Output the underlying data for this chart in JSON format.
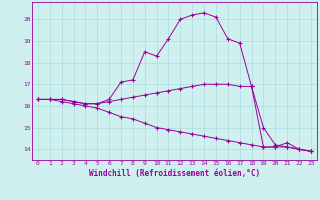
{
  "xlabel": "Windchill (Refroidissement éolien,°C)",
  "background_color": "#d0f0f0",
  "grid_color": "#aadddd",
  "line_color": "#990099",
  "xlim": [
    -0.5,
    23.5
  ],
  "ylim": [
    13.5,
    20.8
  ],
  "xticks": [
    0,
    1,
    2,
    3,
    4,
    5,
    6,
    7,
    8,
    9,
    10,
    11,
    12,
    13,
    14,
    15,
    16,
    17,
    18,
    19,
    20,
    21,
    22,
    23
  ],
  "yticks": [
    14,
    15,
    16,
    17,
    18,
    19,
    20
  ],
  "series1_x": [
    0,
    1,
    2,
    3,
    4,
    5,
    6,
    7,
    8,
    9,
    10,
    11,
    12,
    13,
    14,
    15,
    16,
    17,
    18,
    19,
    20,
    21,
    22,
    23
  ],
  "series1_y": [
    16.3,
    16.3,
    16.3,
    16.2,
    16.1,
    16.1,
    16.3,
    17.1,
    17.2,
    18.5,
    18.3,
    19.1,
    20.0,
    20.2,
    20.3,
    20.1,
    19.1,
    18.9,
    16.9,
    14.1,
    14.1,
    14.3,
    14.0,
    13.9
  ],
  "series2_x": [
    0,
    1,
    2,
    3,
    4,
    5,
    6,
    7,
    8,
    9,
    10,
    11,
    12,
    13,
    14,
    15,
    16,
    17,
    18,
    19,
    20,
    21,
    22,
    23
  ],
  "series2_y": [
    16.3,
    16.3,
    16.3,
    16.2,
    16.1,
    16.1,
    16.2,
    16.3,
    16.4,
    16.5,
    16.6,
    16.7,
    16.8,
    16.9,
    17.0,
    17.0,
    17.0,
    16.9,
    16.9,
    15.0,
    14.2,
    14.1,
    14.0,
    13.9
  ],
  "series3_x": [
    0,
    1,
    2,
    3,
    4,
    5,
    6,
    7,
    8,
    9,
    10,
    11,
    12,
    13,
    14,
    15,
    16,
    17,
    18,
    19,
    20,
    21,
    22,
    23
  ],
  "series3_y": [
    16.3,
    16.3,
    16.2,
    16.1,
    16.0,
    15.9,
    15.7,
    15.5,
    15.4,
    15.2,
    15.0,
    14.9,
    14.8,
    14.7,
    14.6,
    14.5,
    14.4,
    14.3,
    14.2,
    14.1,
    14.1,
    14.1,
    14.0,
    13.9
  ],
  "xlabel_fontsize": 5.5,
  "tick_fontsize": 4.5
}
